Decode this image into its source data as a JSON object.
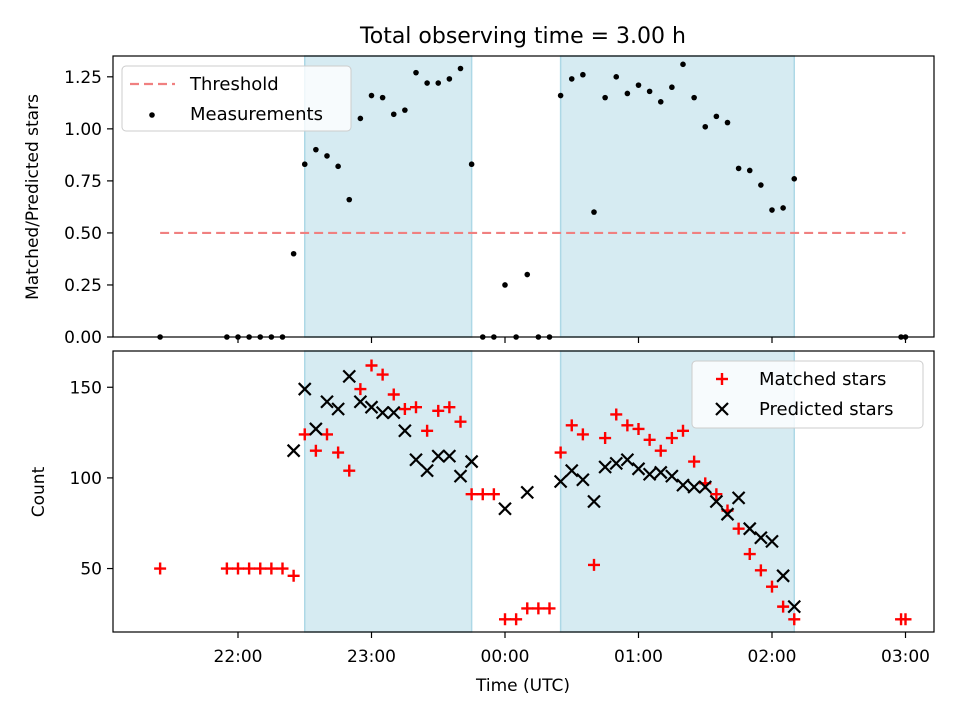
{
  "title": "Total observing time = 3.00 h",
  "xlabel": "Time (UTC)",
  "x_tick_labels": [
    "22:00",
    "23:00",
    "00:00",
    "01:00",
    "02:00",
    "03:00"
  ],
  "shaded_intervals": [
    [
      "22:30",
      "23:45"
    ],
    [
      "00:25",
      "02:10"
    ]
  ],
  "colors": {
    "shade": "#add8e6",
    "threshold": "#f08080",
    "measurements": "#000000",
    "matched": "#ff0000",
    "predicted": "#000000"
  },
  "chart_data": [
    {
      "type": "scatter",
      "panel": "top",
      "ylabel": "Matched/Predicted stars",
      "ylim": [
        0,
        1.35
      ],
      "y_ticks": [
        "0.00",
        "0.25",
        "0.50",
        "0.75",
        "1.00",
        "1.25"
      ],
      "legend": {
        "placement": "top-left",
        "entries": [
          "Threshold",
          "Measurements"
        ]
      },
      "threshold": {
        "name": "Threshold",
        "y": 0.5,
        "x_start": "21:25",
        "x_end": "03:00"
      },
      "series": [
        {
          "name": "Measurements",
          "points": [
            [
              "21:25",
              0.0
            ],
            [
              "21:55",
              0.0
            ],
            [
              "22:00",
              0.0
            ],
            [
              "22:05",
              0.0
            ],
            [
              "22:10",
              0.0
            ],
            [
              "22:15",
              0.0
            ],
            [
              "22:20",
              0.0
            ],
            [
              "22:25",
              0.4
            ],
            [
              "22:30",
              0.83
            ],
            [
              "22:35",
              0.9
            ],
            [
              "22:40",
              0.87
            ],
            [
              "22:45",
              0.82
            ],
            [
              "22:50",
              0.66
            ],
            [
              "22:55",
              1.05
            ],
            [
              "23:00",
              1.16
            ],
            [
              "23:05",
              1.15
            ],
            [
              "23:10",
              1.07
            ],
            [
              "23:15",
              1.09
            ],
            [
              "23:20",
              1.27
            ],
            [
              "23:25",
              1.22
            ],
            [
              "23:30",
              1.22
            ],
            [
              "23:35",
              1.24
            ],
            [
              "23:40",
              1.29
            ],
            [
              "23:45",
              0.83
            ],
            [
              "23:50",
              0.0
            ],
            [
              "23:55",
              0.0
            ],
            [
              "00:00",
              0.25
            ],
            [
              "00:05",
              0.0
            ],
            [
              "00:10",
              0.3
            ],
            [
              "00:15",
              0.0
            ],
            [
              "00:20",
              0.0
            ],
            [
              "00:25",
              1.16
            ],
            [
              "00:30",
              1.24
            ],
            [
              "00:35",
              1.26
            ],
            [
              "00:40",
              0.6
            ],
            [
              "00:45",
              1.15
            ],
            [
              "00:50",
              1.25
            ],
            [
              "00:55",
              1.17
            ],
            [
              "01:00",
              1.21
            ],
            [
              "01:05",
              1.18
            ],
            [
              "01:10",
              1.13
            ],
            [
              "01:15",
              1.2
            ],
            [
              "01:20",
              1.31
            ],
            [
              "01:25",
              1.15
            ],
            [
              "01:30",
              1.01
            ],
            [
              "01:35",
              1.06
            ],
            [
              "01:40",
              1.03
            ],
            [
              "01:45",
              0.81
            ],
            [
              "01:50",
              0.8
            ],
            [
              "01:55",
              0.73
            ],
            [
              "02:00",
              0.61
            ],
            [
              "02:05",
              0.62
            ],
            [
              "02:10",
              0.76
            ],
            [
              "02:58",
              0.0
            ],
            [
              "03:00",
              0.0
            ]
          ]
        }
      ]
    },
    {
      "type": "scatter",
      "panel": "bottom",
      "ylabel": "Count",
      "ylim": [
        15,
        170
      ],
      "y_ticks": [
        "50",
        "100",
        "150"
      ],
      "legend": {
        "placement": "top-right",
        "entries": [
          "Matched stars",
          "Predicted stars"
        ]
      },
      "series": [
        {
          "name": "Matched stars",
          "marker": "+",
          "points": [
            [
              "21:25",
              50
            ],
            [
              "21:55",
              50
            ],
            [
              "22:00",
              50
            ],
            [
              "22:05",
              50
            ],
            [
              "22:10",
              50
            ],
            [
              "22:15",
              50
            ],
            [
              "22:20",
              50
            ],
            [
              "22:25",
              46
            ],
            [
              "22:30",
              124
            ],
            [
              "22:35",
              115
            ],
            [
              "22:40",
              124
            ],
            [
              "22:45",
              114
            ],
            [
              "22:50",
              104
            ],
            [
              "22:55",
              149
            ],
            [
              "23:00",
              162
            ],
            [
              "23:05",
              157
            ],
            [
              "23:10",
              146
            ],
            [
              "23:15",
              138
            ],
            [
              "23:20",
              139
            ],
            [
              "23:25",
              126
            ],
            [
              "23:30",
              137
            ],
            [
              "23:35",
              139
            ],
            [
              "23:40",
              131
            ],
            [
              "23:45",
              91
            ],
            [
              "23:50",
              91
            ],
            [
              "23:55",
              91
            ],
            [
              "00:00",
              22
            ],
            [
              "00:05",
              22
            ],
            [
              "00:10",
              28
            ],
            [
              "00:15",
              28
            ],
            [
              "00:20",
              28
            ],
            [
              "00:25",
              114
            ],
            [
              "00:30",
              129
            ],
            [
              "00:35",
              124
            ],
            [
              "00:40",
              52
            ],
            [
              "00:45",
              122
            ],
            [
              "00:50",
              135
            ],
            [
              "00:55",
              129
            ],
            [
              "01:00",
              127
            ],
            [
              "01:05",
              121
            ],
            [
              "01:10",
              115
            ],
            [
              "01:15",
              122
            ],
            [
              "01:20",
              126
            ],
            [
              "01:25",
              109
            ],
            [
              "01:30",
              97
            ],
            [
              "01:35",
              91
            ],
            [
              "01:40",
              82
            ],
            [
              "01:45",
              72
            ],
            [
              "01:50",
              58
            ],
            [
              "01:55",
              49
            ],
            [
              "02:00",
              40
            ],
            [
              "02:05",
              29
            ],
            [
              "02:10",
              22
            ],
            [
              "02:58",
              22
            ],
            [
              "03:00",
              22
            ]
          ]
        },
        {
          "name": "Predicted stars",
          "marker": "x",
          "points": [
            [
              "22:25",
              115
            ],
            [
              "22:30",
              149
            ],
            [
              "22:35",
              127
            ],
            [
              "22:40",
              142
            ],
            [
              "22:45",
              138
            ],
            [
              "22:50",
              156
            ],
            [
              "22:55",
              142
            ],
            [
              "23:00",
              139
            ],
            [
              "23:05",
              136
            ],
            [
              "23:10",
              136
            ],
            [
              "23:15",
              126
            ],
            [
              "23:20",
              110
            ],
            [
              "23:25",
              104
            ],
            [
              "23:30",
              112
            ],
            [
              "23:35",
              112
            ],
            [
              "23:40",
              101
            ],
            [
              "23:45",
              109
            ],
            [
              "00:00",
              83
            ],
            [
              "00:10",
              92
            ],
            [
              "00:25",
              98
            ],
            [
              "00:30",
              104
            ],
            [
              "00:35",
              99
            ],
            [
              "00:40",
              87
            ],
            [
              "00:45",
              106
            ],
            [
              "00:50",
              108
            ],
            [
              "00:55",
              110
            ],
            [
              "01:00",
              105
            ],
            [
              "01:05",
              102
            ],
            [
              "01:10",
              103
            ],
            [
              "01:15",
              101
            ],
            [
              "01:20",
              96
            ],
            [
              "01:25",
              95
            ],
            [
              "01:30",
              95
            ],
            [
              "01:35",
              87
            ],
            [
              "01:40",
              80
            ],
            [
              "01:45",
              89
            ],
            [
              "01:50",
              72
            ],
            [
              "01:55",
              67
            ],
            [
              "02:00",
              65
            ],
            [
              "02:05",
              46
            ],
            [
              "02:10",
              29
            ]
          ]
        }
      ]
    }
  ]
}
